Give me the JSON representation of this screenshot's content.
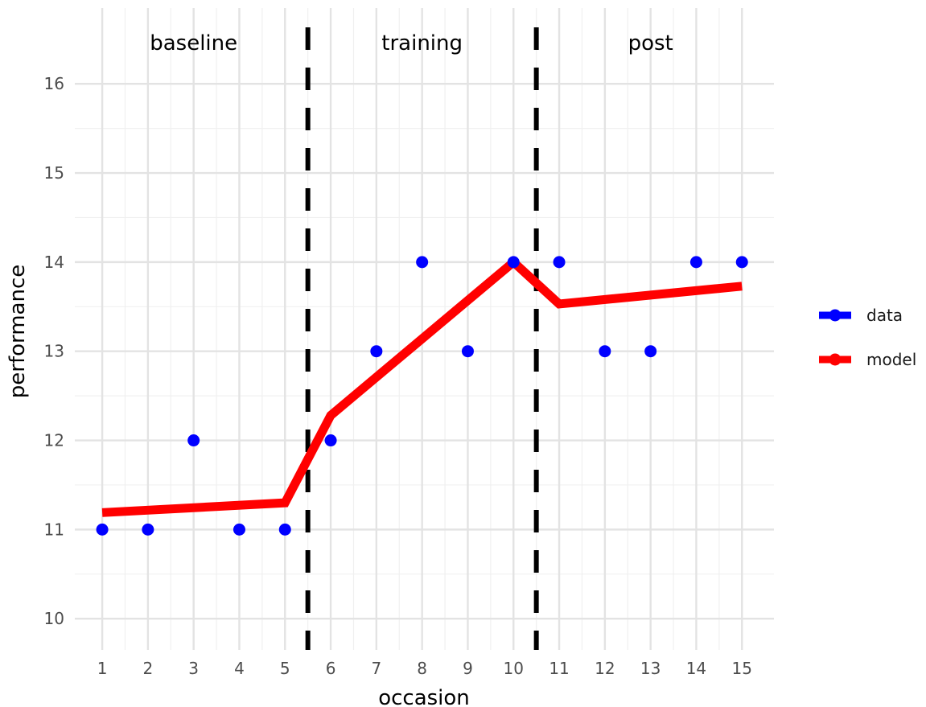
{
  "chart_data": {
    "type": "scatter",
    "xlabel": "occasion",
    "ylabel": "performance",
    "xlim": [
      0.4,
      15.7
    ],
    "ylim": [
      9.65,
      16.85
    ],
    "x_ticks": [
      1,
      2,
      3,
      4,
      5,
      6,
      7,
      8,
      9,
      10,
      11,
      12,
      13,
      14,
      15
    ],
    "y_ticks": [
      10,
      11,
      12,
      13,
      14,
      15,
      16
    ],
    "grid": true,
    "phase_dividers": [
      5.5,
      10.5
    ],
    "phase_labels": [
      {
        "label": "baseline",
        "x": 3
      },
      {
        "label": "training",
        "x": 8
      },
      {
        "label": "post",
        "x": 13
      }
    ],
    "series": [
      {
        "name": "data",
        "kind": "points",
        "color": "#0000ff",
        "x": [
          1,
          2,
          3,
          4,
          5,
          6,
          7,
          8,
          9,
          10,
          11,
          12,
          13,
          14,
          15
        ],
        "y": [
          11,
          11,
          12,
          11,
          11,
          12,
          13,
          14,
          13,
          14,
          14,
          13,
          13,
          14,
          14
        ]
      },
      {
        "name": "model",
        "kind": "line",
        "color": "#ff0000",
        "x": [
          1,
          5,
          6,
          10,
          11,
          15
        ],
        "y": [
          11.19,
          11.3,
          12.28,
          14.0,
          13.53,
          13.73
        ]
      }
    ],
    "legend_position": "right"
  }
}
